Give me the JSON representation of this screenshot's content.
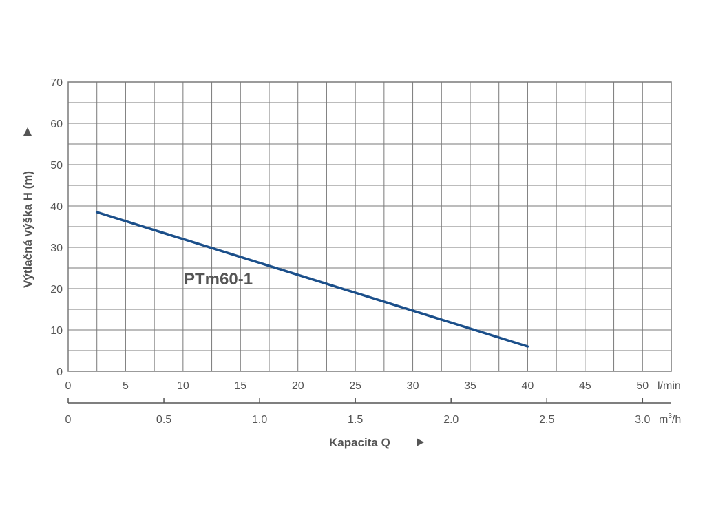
{
  "chart_data": {
    "type": "line",
    "ylabel": "Výtlačná výška H (m)",
    "xlabel": "Kapacita Q",
    "x_unit": "l/min",
    "x2_unit_base": "m",
    "x2_unit_sup": "3",
    "x2_unit_tail": "/h",
    "xlim": [
      0,
      52.5
    ],
    "ylim": [
      0,
      70
    ],
    "x_ticks": [
      0,
      5,
      10,
      15,
      20,
      25,
      30,
      35,
      40,
      45,
      50
    ],
    "x_tick_labels": [
      "0",
      "5",
      "10",
      "15",
      "20",
      "25",
      "30",
      "35",
      "40",
      "45",
      "50"
    ],
    "y_ticks": [
      0,
      10,
      20,
      30,
      40,
      50,
      60,
      70
    ],
    "y_tick_labels": [
      "0",
      "10",
      "20",
      "30",
      "40",
      "50",
      "60",
      "70"
    ],
    "x2_ticks": [
      0,
      0.5,
      1.0,
      1.5,
      2.0,
      2.5,
      3.0
    ],
    "x2_tick_labels": [
      "0",
      "0.5",
      "1.0",
      "1.5",
      "2.0",
      "2.5",
      "3.0"
    ],
    "grid": true,
    "series": [
      {
        "name": "PTm60-1",
        "color": "#1b4f8a",
        "x": [
          2.5,
          40
        ],
        "y": [
          38.5,
          6
        ]
      }
    ]
  }
}
